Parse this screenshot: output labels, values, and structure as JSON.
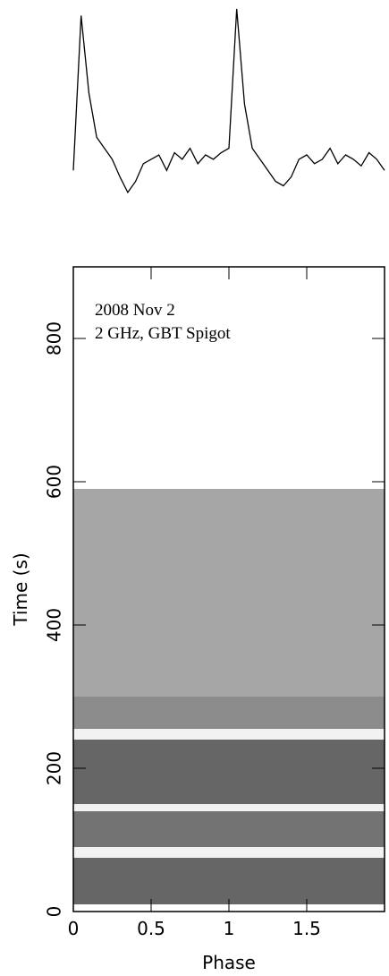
{
  "chart_data": [
    {
      "type": "line",
      "color": "#000000",
      "x": [
        0,
        0.05,
        0.1,
        0.15,
        0.2,
        0.25,
        0.3,
        0.35,
        0.4,
        0.45,
        0.5,
        0.55,
        0.6,
        0.65,
        0.7,
        0.75,
        0.8,
        0.85,
        0.9,
        0.95,
        1.0,
        1.05,
        1.1,
        1.15,
        1.2,
        1.25,
        1.3,
        1.35,
        1.4,
        1.45,
        1.5,
        1.55,
        1.6,
        1.65,
        1.7,
        1.75,
        1.8,
        1.85,
        1.9,
        1.95,
        2.0
      ],
      "values": [
        0.25,
        0.95,
        0.6,
        0.4,
        0.35,
        0.3,
        0.22,
        0.15,
        0.2,
        0.28,
        0.3,
        0.32,
        0.25,
        0.33,
        0.3,
        0.35,
        0.28,
        0.32,
        0.3,
        0.33,
        0.35,
        0.98,
        0.55,
        0.35,
        0.3,
        0.25,
        0.2,
        0.18,
        0.22,
        0.3,
        0.32,
        0.28,
        0.3,
        0.35,
        0.28,
        0.32,
        0.3,
        0.27,
        0.33,
        0.3,
        0.25
      ],
      "xlim": [
        0,
        2
      ],
      "ylim": [
        0,
        1
      ]
    },
    {
      "type": "image",
      "xlabel": "Phase",
      "ylabel": "Time (s)",
      "annotations": [
        "2008 Nov 2",
        "2 GHz, GBT Spigot"
      ],
      "time_edges": [
        10,
        75,
        90,
        140,
        150,
        240,
        255,
        300,
        590
      ],
      "levels": [
        0.6,
        0.05,
        0.55,
        0.05,
        0.6,
        0.05,
        0.45,
        0.35
      ],
      "xlim": [
        0,
        2
      ],
      "ylim": [
        0,
        900
      ],
      "xticks": [
        0,
        0.5,
        1,
        1.5
      ],
      "yticks": [
        0,
        200,
        400,
        600,
        800
      ]
    }
  ]
}
